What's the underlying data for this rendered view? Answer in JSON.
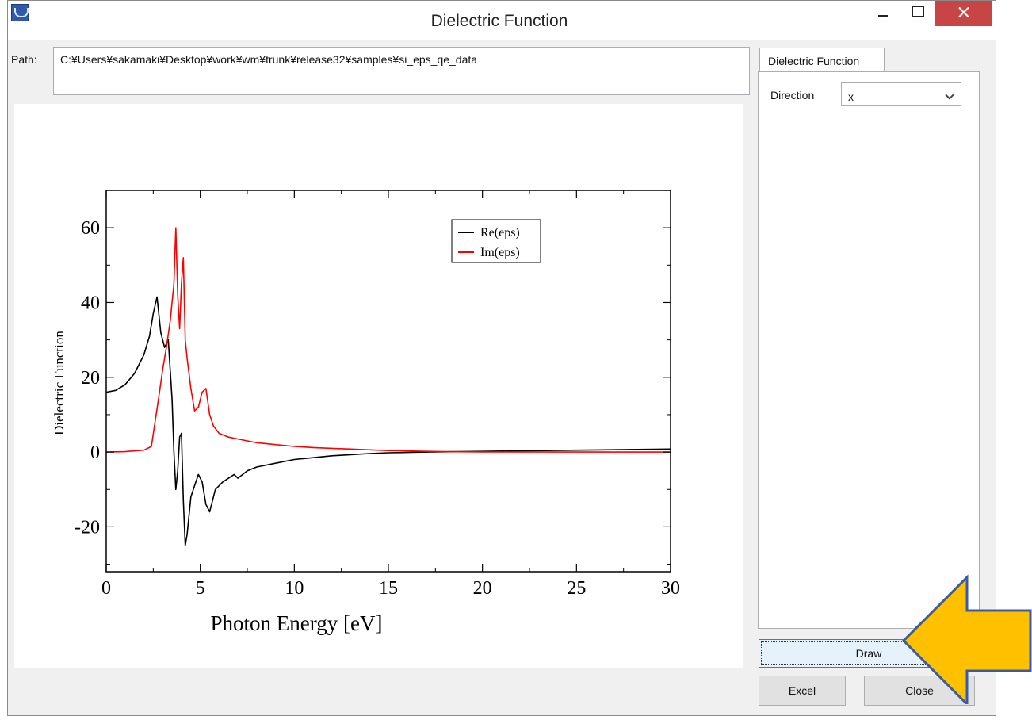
{
  "window": {
    "title": "Dielectric Function"
  },
  "path": {
    "label": "Path:",
    "value": "C:¥Users¥sakamaki¥Desktop¥work¥wm¥trunk¥release32¥samples¥si_eps_qe_data"
  },
  "tab": {
    "label": "Dielectric Function"
  },
  "direction": {
    "label": "Direction",
    "value": "x"
  },
  "buttons": {
    "draw": "Draw",
    "excel": "Excel",
    "close": "Close"
  },
  "chart_data": {
    "type": "line",
    "xlabel": "Photon Energy [eV]",
    "ylabel": "Dielectric Function",
    "xlim": [
      0,
      30
    ],
    "ylim": [
      -32,
      70
    ],
    "xticks": [
      0,
      5,
      10,
      15,
      20,
      25,
      30
    ],
    "yticks": [
      -20,
      0,
      20,
      40,
      60
    ],
    "legend_position": "top-right",
    "series": [
      {
        "name": "Re(eps)",
        "color": "#000000",
        "x": [
          0,
          0.5,
          1.0,
          1.5,
          2.0,
          2.3,
          2.5,
          2.7,
          2.9,
          3.1,
          3.3,
          3.5,
          3.6,
          3.7,
          3.8,
          3.9,
          4.0,
          4.1,
          4.2,
          4.3,
          4.5,
          4.7,
          4.9,
          5.1,
          5.3,
          5.5,
          5.8,
          6.2,
          6.8,
          7.0,
          7.5,
          8,
          9,
          10,
          11,
          12,
          13,
          14,
          15,
          17,
          20,
          25,
          30
        ],
        "y": [
          16,
          16.5,
          18,
          21,
          26,
          31,
          37,
          41.5,
          32,
          28,
          30,
          14,
          0,
          -10,
          -5,
          4,
          5,
          -13,
          -25,
          -22,
          -12,
          -9,
          -6,
          -8,
          -14,
          -16,
          -10,
          -8,
          -6,
          -7,
          -5,
          -4,
          -3,
          -2,
          -1.5,
          -1,
          -0.7,
          -0.4,
          -0.2,
          0,
          0.2,
          0.5,
          0.8
        ]
      },
      {
        "name": "Im(eps)",
        "color": "#ff0000",
        "x": [
          0,
          1.0,
          2.0,
          2.4,
          2.8,
          3.0,
          3.2,
          3.4,
          3.6,
          3.7,
          3.8,
          3.9,
          4.0,
          4.1,
          4.2,
          4.3,
          4.5,
          4.7,
          4.9,
          5.1,
          5.3,
          5.5,
          5.7,
          6.0,
          6.5,
          7.0,
          7.5,
          8,
          9,
          10,
          11,
          12,
          13,
          14,
          15,
          16,
          17,
          18,
          20,
          25,
          30
        ],
        "y": [
          0,
          0.1,
          0.5,
          1.5,
          15,
          22,
          28,
          35,
          45,
          60,
          42,
          33,
          45,
          52,
          30,
          25,
          17,
          11,
          12,
          16,
          17,
          10,
          7,
          5,
          4,
          3.5,
          3,
          2.5,
          2,
          1.5,
          1.2,
          1,
          0.8,
          0.6,
          0.4,
          0.3,
          0.2,
          0.1,
          0.05,
          0,
          0
        ]
      }
    ]
  }
}
